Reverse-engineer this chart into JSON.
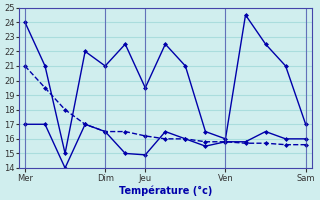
{
  "title": "Température (°c)",
  "background_color": "#d0eeee",
  "grid_color": "#aadddd",
  "line_color": "#0000aa",
  "ylim": [
    14,
    25
  ],
  "yticks": [
    14,
    15,
    16,
    17,
    18,
    19,
    20,
    21,
    22,
    23,
    24,
    25
  ],
  "line1_x": [
    0,
    1,
    2,
    3,
    4,
    5,
    6,
    7,
    8,
    9,
    10,
    11,
    12,
    13,
    14
  ],
  "line1_y": [
    24,
    21,
    15,
    22,
    21,
    22.5,
    19.5,
    22.5,
    21,
    16.5,
    16,
    24.5,
    22.5,
    21,
    17
  ],
  "line2_x": [
    0,
    1,
    2,
    3,
    4,
    5,
    6,
    7,
    8,
    9,
    10,
    11,
    12,
    13,
    14
  ],
  "line2_y": [
    17,
    17,
    14,
    17,
    16.5,
    15,
    14.9,
    16.5,
    16,
    15.5,
    15.8,
    15.8,
    16.5,
    16,
    16
  ],
  "line3_x": [
    0,
    1,
    2,
    3,
    4,
    5,
    6,
    7,
    8,
    9,
    10,
    11,
    12,
    13,
    14
  ],
  "line3_y": [
    21,
    19.5,
    18,
    17,
    16.5,
    16.5,
    16.2,
    16.0,
    16.0,
    15.8,
    15.8,
    15.7,
    15.7,
    15.6,
    15.6
  ],
  "x_major_pos": [
    0,
    4,
    6,
    10,
    14
  ],
  "x_major_labels": [
    "Mer",
    "Dim",
    "Jeu",
    "Ven",
    "Sam"
  ]
}
